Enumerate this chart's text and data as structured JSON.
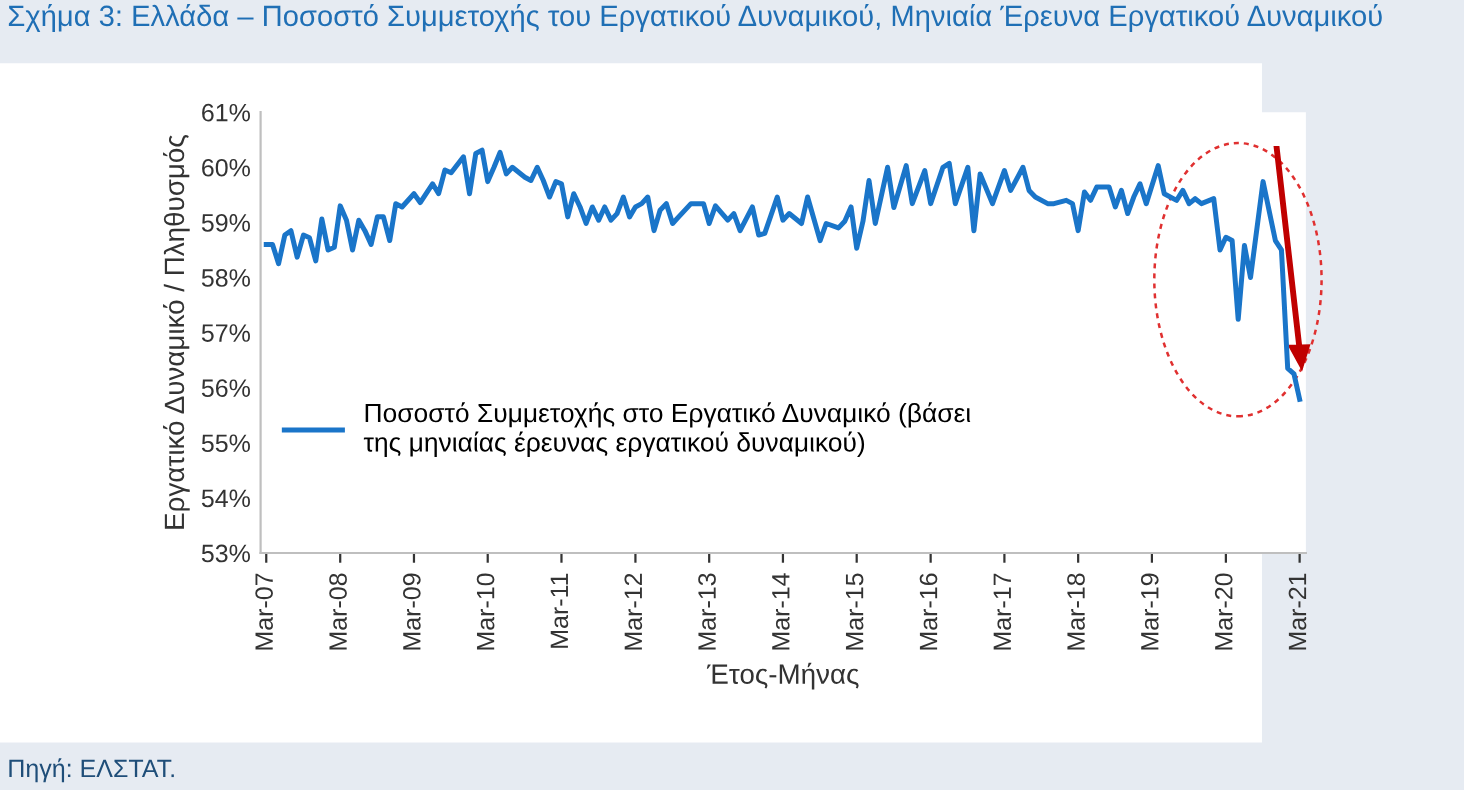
{
  "chart_data": {
    "type": "line",
    "title": "Σχήμα 3: Ελλάδα – Ποσοστό Συμμετοχής του Εργατικού Δυναμικού, Μηνιαία Έρευνα Εργατικού Δυναμικού",
    "xlabel": "Έτος-Μήνας",
    "ylabel": "Εργατικό Δυναμικό / Πληθυσμός",
    "annotations": [
      "Πηγή: ΕΛΣΤΑΤ."
    ],
    "legend": "left",
    "grid": false,
    "x": [
      "2007-03",
      "2007-04",
      "2007-05",
      "2007-06",
      "2007-07",
      "2007-08",
      "2007-09",
      "2007-10",
      "2007-11",
      "2007-12",
      "2008-01",
      "2008-02",
      "2008-03",
      "2008-04",
      "2008-05",
      "2008-06",
      "2008-07",
      "2008-08",
      "2008-09",
      "2008-10",
      "2008-11",
      "2008-12",
      "2009-01",
      "2009-03",
      "2009-04",
      "2009-06",
      "2009-07",
      "2009-08",
      "2009-09",
      "2009-11",
      "2009-12",
      "2010-01",
      "2010-02",
      "2010-03",
      "2010-04",
      "2010-05",
      "2010-06",
      "2010-07",
      "2010-09",
      "2010-10",
      "2010-11",
      "2010-12",
      "2011-01",
      "2011-02",
      "2011-03",
      "2011-04",
      "2011-05",
      "2011-06",
      "2011-07",
      "2011-08",
      "2011-09",
      "2011-10",
      "2011-11",
      "2011-12",
      "2012-01",
      "2012-02",
      "2012-03",
      "2012-04",
      "2012-05",
      "2012-06",
      "2012-07",
      "2012-08",
      "2012-09",
      "2012-10",
      "2012-12",
      "2013-02",
      "2013-03",
      "2013-04",
      "2013-06",
      "2013-07",
      "2013-08",
      "2013-10",
      "2013-11",
      "2013-12",
      "2014-02",
      "2014-03",
      "2014-04",
      "2014-06",
      "2014-07",
      "2014-09",
      "2014-10",
      "2014-12",
      "2015-01",
      "2015-02",
      "2015-03",
      "2015-04",
      "2015-05",
      "2015-06",
      "2015-08",
      "2015-09",
      "2015-11",
      "2015-12",
      "2016-02",
      "2016-03",
      "2016-05",
      "2016-06",
      "2016-07",
      "2016-09",
      "2016-10",
      "2016-11",
      "2017-01",
      "2017-03",
      "2017-04",
      "2017-06",
      "2017-07",
      "2017-08",
      "2017-10",
      "2017-11",
      "2018-01",
      "2018-02",
      "2018-03",
      "2018-04",
      "2018-05",
      "2018-06",
      "2018-08",
      "2018-09",
      "2018-10",
      "2018-11",
      "2018-12",
      "2019-01",
      "2019-02",
      "2019-04",
      "2019-05",
      "2019-07",
      "2019-08",
      "2019-09",
      "2019-10",
      "2019-11",
      "2020-01",
      "2020-02",
      "2020-03",
      "2020-04",
      "2020-05",
      "2020-06",
      "2020-07",
      "2020-09",
      "2020-11",
      "2020-12",
      "2021-01",
      "2021-02",
      "2021-03"
    ],
    "series": [
      {
        "name": "Ποσοστό Συμμετοχής στο Εργατικό Δυναμικό (βάσει της μηνιαίας έρευνας εργατικού δυναμικού)",
        "color": "#1a75c9",
        "values": [
          58.6,
          58.6,
          58.25,
          58.77,
          58.85,
          58.37,
          58.77,
          58.72,
          58.3,
          59.06,
          58.5,
          58.55,
          59.3,
          59.04,
          58.5,
          59.04,
          58.85,
          58.6,
          59.1,
          59.1,
          58.67,
          59.34,
          59.28,
          59.52,
          59.36,
          59.7,
          59.52,
          59.95,
          59.9,
          60.19,
          59.52,
          60.25,
          60.31,
          59.74,
          60.0,
          60.27,
          59.88,
          60.0,
          59.82,
          59.76,
          60.0,
          59.76,
          59.46,
          59.74,
          59.7,
          59.1,
          59.52,
          59.28,
          58.98,
          59.28,
          59.04,
          59.28,
          59.04,
          59.16,
          59.46,
          59.1,
          59.28,
          59.34,
          59.46,
          58.85,
          59.22,
          59.34,
          58.98,
          59.1,
          59.34,
          59.34,
          58.98,
          59.3,
          59.04,
          59.16,
          58.85,
          59.28,
          58.77,
          58.8,
          59.46,
          59.04,
          59.16,
          58.98,
          59.46,
          58.67,
          58.98,
          58.9,
          59.02,
          59.28,
          58.53,
          59.02,
          59.76,
          58.98,
          60.0,
          59.27,
          60.03,
          59.34,
          59.94,
          59.34,
          60.0,
          60.07,
          59.34,
          60.0,
          58.85,
          59.88,
          59.34,
          59.94,
          59.58,
          60.0,
          59.58,
          59.46,
          59.34,
          59.34,
          59.4,
          59.34,
          58.85,
          59.55,
          59.4,
          59.64,
          59.64,
          59.28,
          59.58,
          59.16,
          59.46,
          59.7,
          59.34,
          60.03,
          59.52,
          59.4,
          59.58,
          59.34,
          59.43,
          59.34,
          59.43,
          58.5,
          58.73,
          58.67,
          57.24,
          58.58,
          58.0,
          59.74,
          58.67,
          58.5,
          56.35,
          56.25,
          55.79
        ]
      }
    ],
    "xlim": [
      "2007-02",
      "2021-04"
    ],
    "xticks": [
      {
        "value": "2007-03",
        "label": "Mar-07"
      },
      {
        "value": "2008-03",
        "label": "Mar-08"
      },
      {
        "value": "2009-03",
        "label": "Mar-09"
      },
      {
        "value": "2010-03",
        "label": "Mar-10"
      },
      {
        "value": "2011-03",
        "label": "Mar-11"
      },
      {
        "value": "2012-03",
        "label": "Mar-12"
      },
      {
        "value": "2013-03",
        "label": "Mar-13"
      },
      {
        "value": "2014-03",
        "label": "Mar-14"
      },
      {
        "value": "2015-03",
        "label": "Mar-15"
      },
      {
        "value": "2016-03",
        "label": "Mar-16"
      },
      {
        "value": "2017-03",
        "label": "Mar-17"
      },
      {
        "value": "2018-03",
        "label": "Mar-18"
      },
      {
        "value": "2019-03",
        "label": "Mar-19"
      },
      {
        "value": "2020-03",
        "label": "Mar-20"
      },
      {
        "value": "2021-03",
        "label": "Mar-21"
      }
    ],
    "ylim": [
      53,
      61
    ],
    "yticks": [
      {
        "value": 53,
        "label": "53%"
      },
      {
        "value": 54,
        "label": "54%"
      },
      {
        "value": 55,
        "label": "55%"
      },
      {
        "value": 56,
        "label": "56%"
      },
      {
        "value": 57,
        "label": "57%"
      },
      {
        "value": 58,
        "label": "58%"
      },
      {
        "value": 59,
        "label": "59%"
      },
      {
        "value": 60,
        "label": "60%"
      },
      {
        "value": 61,
        "label": "61%"
      }
    ]
  }
}
